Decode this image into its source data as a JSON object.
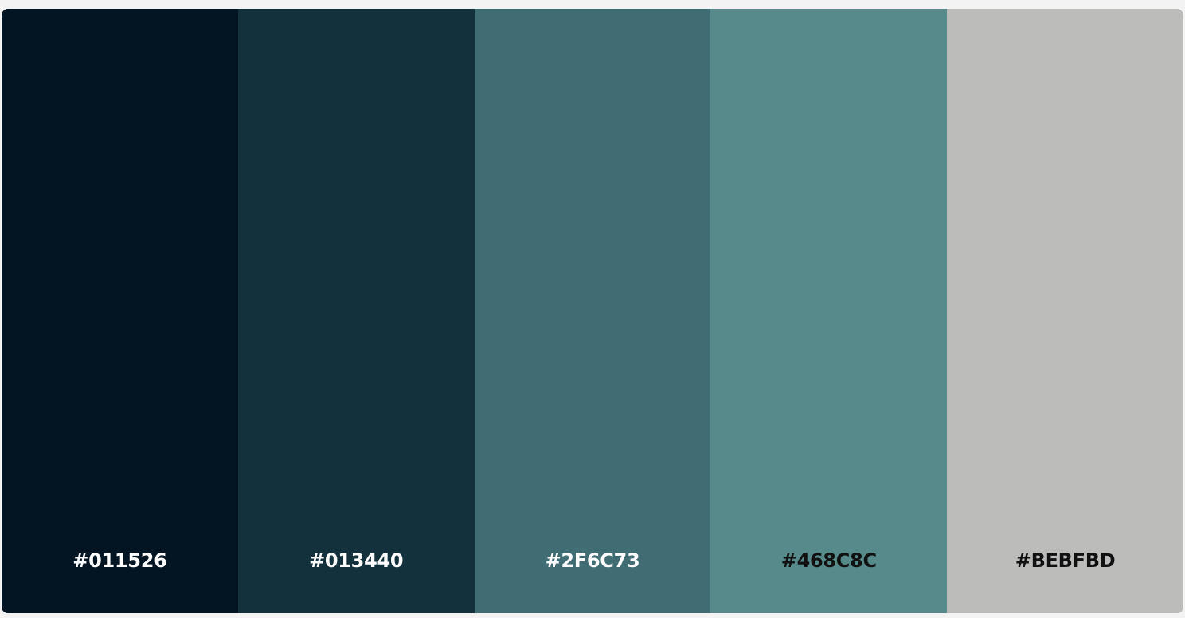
{
  "palette": {
    "swatches": [
      {
        "hex": "#011526",
        "color": "#031423",
        "text_color": "#ffffff"
      },
      {
        "hex": "#013440",
        "color": "#13313C",
        "text_color": "#ffffff"
      },
      {
        "hex": "#2F6C73",
        "color": "#406C73",
        "text_color": "#ffffff"
      },
      {
        "hex": "#468C8C",
        "color": "#578A8A",
        "text_color": "#111111"
      },
      {
        "hex": "#BEBFBD",
        "color": "#BCBCBA",
        "text_color": "#111111"
      }
    ]
  }
}
